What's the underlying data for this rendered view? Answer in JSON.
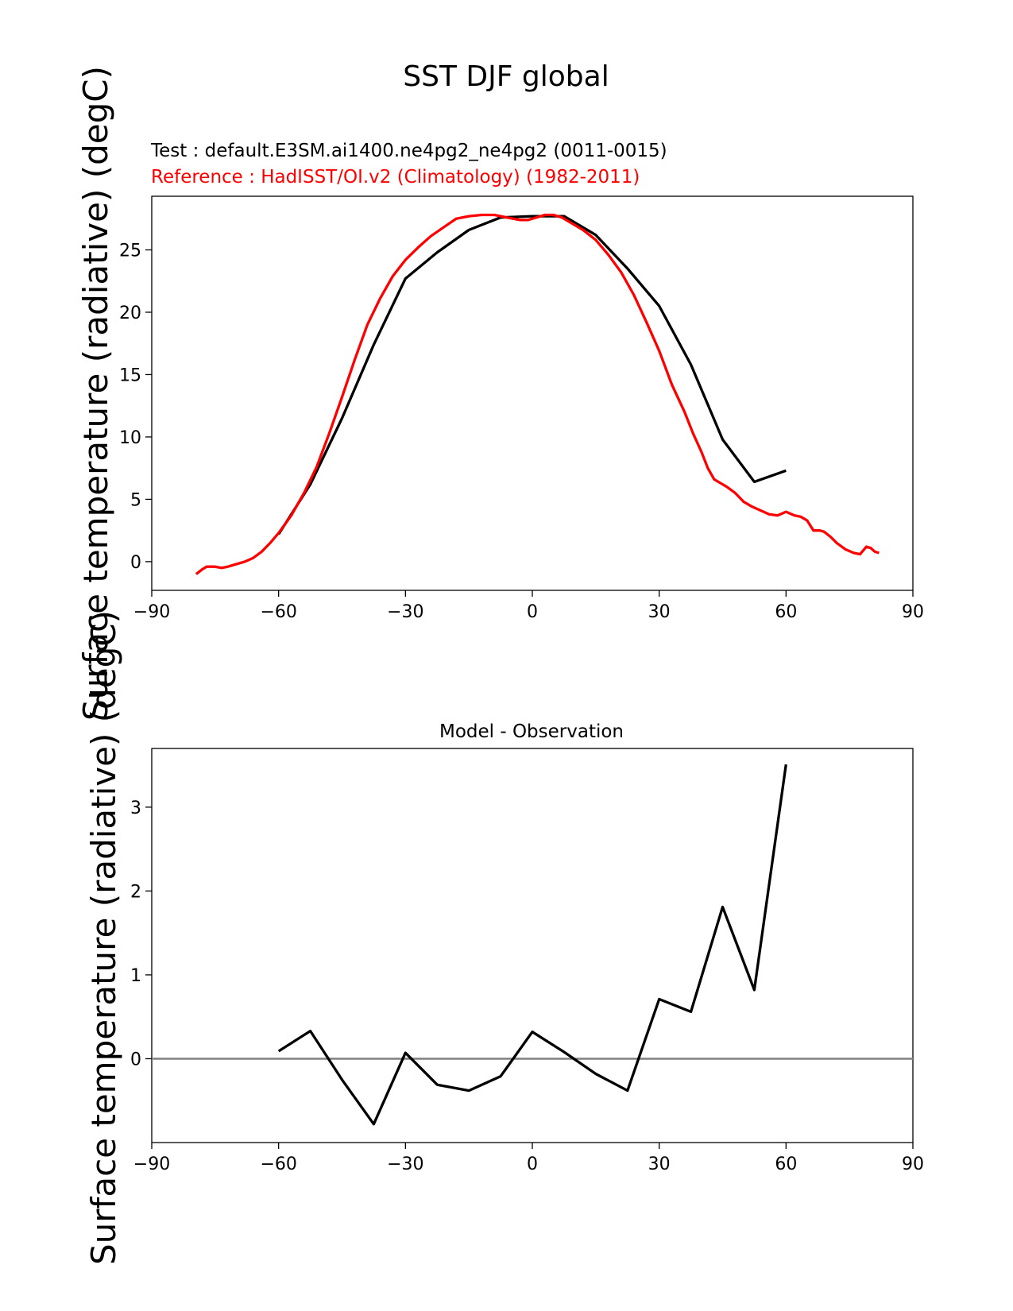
{
  "figure": {
    "suptitle": "SST DJF global",
    "test_label": "Test : default.E3SM.ai1400.ne4pg2_ne4pg2 (0011-0015)",
    "reference_label": "Reference : HadISST/OI.v2 (Climatology) (1982-2011)",
    "colors": {
      "test": "#000000",
      "reference": "#ff0000",
      "zero_line": "#808080",
      "axes": "#000000"
    }
  },
  "chart_data": [
    {
      "type": "line",
      "title": "",
      "xlabel": "",
      "ylabel": "Surface temperature (radiative) (degC)",
      "xlim": [
        -90,
        90
      ],
      "ylim": [
        -2.3,
        29.3
      ],
      "xticks": [
        -90,
        -60,
        -30,
        0,
        30,
        60,
        90
      ],
      "xtick_labels": [
        "−90",
        "−60",
        "−30",
        "0",
        "30",
        "60",
        "90"
      ],
      "yticks": [
        0,
        5,
        10,
        15,
        20,
        25
      ],
      "ytick_labels": [
        "0",
        "5",
        "10",
        "15",
        "20",
        "25"
      ],
      "grid": false,
      "series": [
        {
          "role": "test",
          "x": [
            -60,
            -52.5,
            -45,
            -37.5,
            -30,
            -22.5,
            -15,
            -7.5,
            0,
            7.5,
            15,
            22.5,
            30,
            37.5,
            45,
            52.5,
            60
          ],
          "y": [
            2.2,
            6.2,
            11.5,
            17.4,
            22.7,
            24.8,
            26.6,
            27.6,
            27.7,
            27.7,
            26.2,
            23.5,
            20.5,
            15.8,
            9.8,
            6.4,
            7.3
          ]
        },
        {
          "role": "reference",
          "x": [
            -79.5,
            -78,
            -77,
            -75,
            -73.5,
            -72,
            -70,
            -68,
            -66,
            -64,
            -62,
            -60,
            -57,
            -54,
            -51,
            -48,
            -45,
            -42,
            -39,
            -36,
            -33,
            -30,
            -27,
            -24,
            -21,
            -18,
            -15,
            -12,
            -9,
            -6,
            -3,
            -1,
            1,
            3,
            5,
            7,
            9,
            12,
            15,
            18,
            21,
            24,
            27,
            30,
            33,
            36,
            38,
            40,
            41.5,
            43,
            44.5,
            46,
            48,
            50,
            52,
            54,
            56,
            58,
            60,
            62,
            63.5,
            65,
            66.5,
            68,
            69,
            70.5,
            72,
            74,
            76,
            77.5,
            79,
            80,
            81,
            82
          ],
          "y": [
            -1.0,
            -0.6,
            -0.4,
            -0.4,
            -0.5,
            -0.4,
            -0.2,
            0.0,
            0.3,
            0.8,
            1.5,
            2.3,
            3.7,
            5.5,
            7.6,
            10.3,
            13.2,
            16.2,
            19.0,
            21.1,
            22.9,
            24.2,
            25.2,
            26.1,
            26.8,
            27.5,
            27.7,
            27.8,
            27.8,
            27.6,
            27.4,
            27.4,
            27.6,
            27.8,
            27.8,
            27.6,
            27.2,
            26.6,
            25.8,
            24.6,
            23.2,
            21.4,
            19.2,
            16.9,
            14.2,
            12.0,
            10.3,
            8.8,
            7.5,
            6.6,
            6.3,
            6.0,
            5.5,
            4.8,
            4.4,
            4.1,
            3.8,
            3.7,
            4.0,
            3.7,
            3.6,
            3.3,
            2.5,
            2.5,
            2.4,
            2.0,
            1.5,
            1.0,
            0.7,
            0.6,
            1.2,
            1.1,
            0.8,
            0.7
          ]
        }
      ]
    },
    {
      "type": "line",
      "title": "Model - Observation",
      "xlabel": "",
      "ylabel": "Surface temperature (radiative) (degC)",
      "xlim": [
        -90,
        90
      ],
      "ylim": [
        -1.0,
        3.7
      ],
      "xticks": [
        -90,
        -60,
        -30,
        0,
        30,
        60,
        90
      ],
      "xtick_labels": [
        "−90",
        "−60",
        "−30",
        "0",
        "30",
        "60",
        "90"
      ],
      "yticks": [
        0,
        1,
        2,
        3
      ],
      "ytick_labels": [
        "0",
        "1",
        "2",
        "3"
      ],
      "grid": false,
      "zero_line": true,
      "series": [
        {
          "role": "difference",
          "x": [
            -60,
            -52.5,
            -45,
            -37.5,
            -30,
            -22.5,
            -15,
            -7.5,
            0,
            7.5,
            15,
            22.5,
            30,
            37.5,
            45,
            52.5,
            60
          ],
          "y": [
            0.09,
            0.33,
            -0.25,
            -0.78,
            0.07,
            -0.31,
            -0.38,
            -0.21,
            0.32,
            0.08,
            -0.18,
            -0.38,
            0.71,
            0.56,
            1.81,
            0.82,
            3.51
          ]
        }
      ]
    }
  ]
}
